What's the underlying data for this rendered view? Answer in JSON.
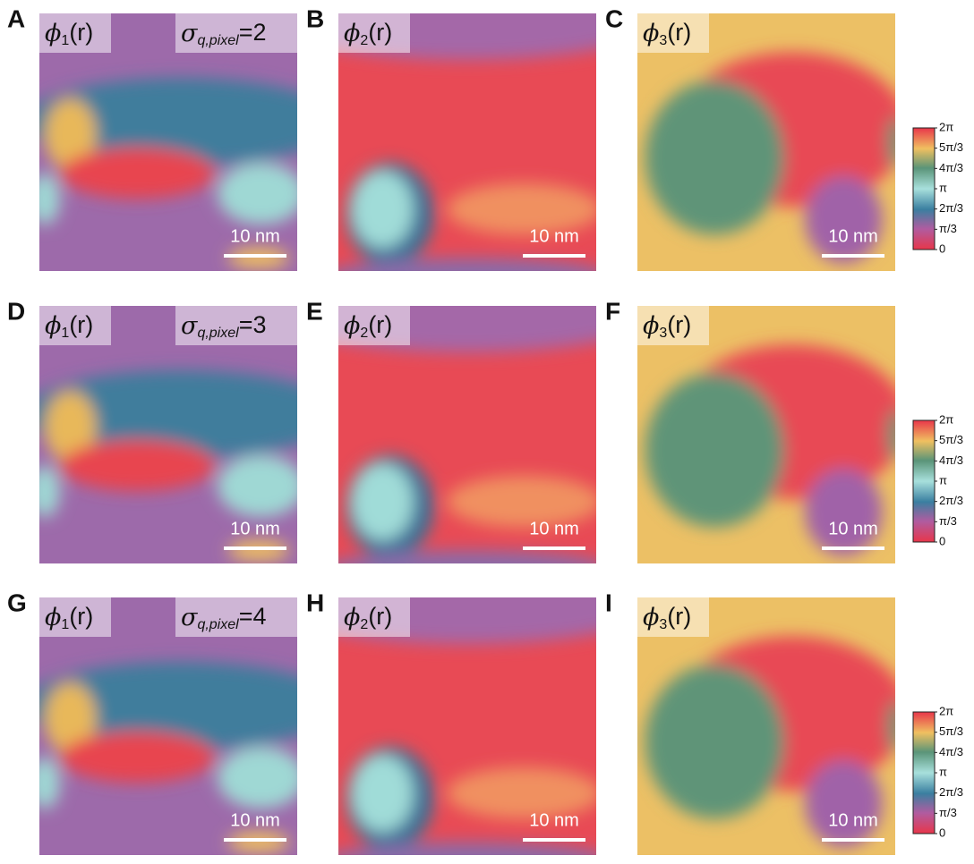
{
  "panels": [
    {
      "letter": "A",
      "label": {
        "symbol": "ϕ",
        "sub": "1",
        "rest": "(r)"
      },
      "sigma": {
        "symbol": "σ",
        "sub": "q,pixel",
        "rest": "=2"
      },
      "scale_bar": "10 nm"
    },
    {
      "letter": "B",
      "label": {
        "symbol": "ϕ",
        "sub": "2",
        "rest": "(r)"
      },
      "scale_bar": "10 nm"
    },
    {
      "letter": "C",
      "label": {
        "symbol": "ϕ",
        "sub": "3",
        "rest": "(r)"
      },
      "scale_bar": "10 nm"
    },
    {
      "letter": "D",
      "label": {
        "symbol": "ϕ",
        "sub": "1",
        "rest": "(r)"
      },
      "sigma": {
        "symbol": "σ",
        "sub": "q,pixel",
        "rest": "=3"
      },
      "scale_bar": "10 nm"
    },
    {
      "letter": "E",
      "label": {
        "symbol": "ϕ",
        "sub": "2",
        "rest": "(r)"
      },
      "scale_bar": "10 nm"
    },
    {
      "letter": "F",
      "label": {
        "symbol": "ϕ",
        "sub": "3",
        "rest": "(r)"
      },
      "scale_bar": "10 nm"
    },
    {
      "letter": "G",
      "label": {
        "symbol": "ϕ",
        "sub": "1",
        "rest": "(r)"
      },
      "sigma": {
        "symbol": "σ",
        "sub": "q,pixel",
        "rest": "=4"
      },
      "scale_bar": "10 nm"
    },
    {
      "letter": "H",
      "label": {
        "symbol": "ϕ",
        "sub": "2",
        "rest": "(r)"
      },
      "scale_bar": "10 nm"
    },
    {
      "letter": "I",
      "label": {
        "symbol": "ϕ",
        "sub": "3",
        "rest": "(r)"
      },
      "scale_bar": "10 nm"
    }
  ],
  "colorbars": [
    {
      "ticks": [
        "2π",
        "5π/3",
        "4π/3",
        "π",
        "2π/3",
        "π/3",
        "0"
      ]
    },
    {
      "ticks": [
        "2π",
        "5π/3",
        "4π/3",
        "π",
        "2π/3",
        "π/3",
        "0"
      ]
    },
    {
      "ticks": [
        "2π",
        "5π/3",
        "4π/3",
        "π",
        "2π/3",
        "π/3",
        "0"
      ]
    }
  ]
}
